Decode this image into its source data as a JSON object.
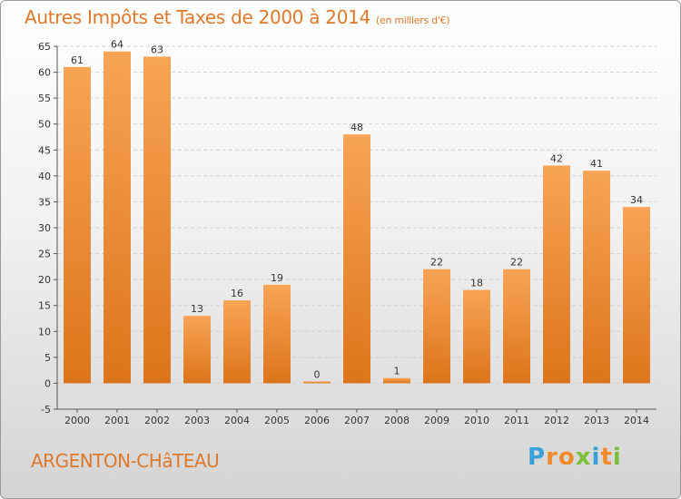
{
  "chart_data": {
    "type": "bar",
    "title": "Autres Impôts et Taxes de 2000 à 2014",
    "subtitle": "(en milliers d'€)",
    "categories": [
      "2000",
      "2001",
      "2002",
      "2003",
      "2004",
      "2005",
      "2006",
      "2007",
      "2008",
      "2009",
      "2010",
      "2011",
      "2012",
      "2013",
      "2014"
    ],
    "values": [
      61,
      64,
      63,
      13,
      16,
      19,
      0,
      48,
      1,
      22,
      18,
      22,
      42,
      41,
      34
    ],
    "ylim": [
      -5,
      65
    ],
    "yticks": [
      "-5",
      "0",
      "5",
      "10",
      "15",
      "20",
      "25",
      "30",
      "35",
      "40",
      "45",
      "50",
      "55",
      "60",
      "65"
    ],
    "xlabel": "",
    "ylabel": "",
    "grid": true,
    "colors": {
      "bar_top": "#f7a455",
      "bar_bottom": "#dd7419",
      "title": "#e0782a"
    }
  },
  "place_name": "ARGENTON-CHâTEAU",
  "logo": {
    "letters": [
      "P",
      "r",
      "o",
      "x",
      "i",
      "t",
      "i"
    ],
    "colors": [
      "#3aa0d8",
      "#f08a2a",
      "#f08a2a",
      "#7cbf3a",
      "#3aa0d8",
      "#f08a2a",
      "#7cbf3a"
    ]
  }
}
